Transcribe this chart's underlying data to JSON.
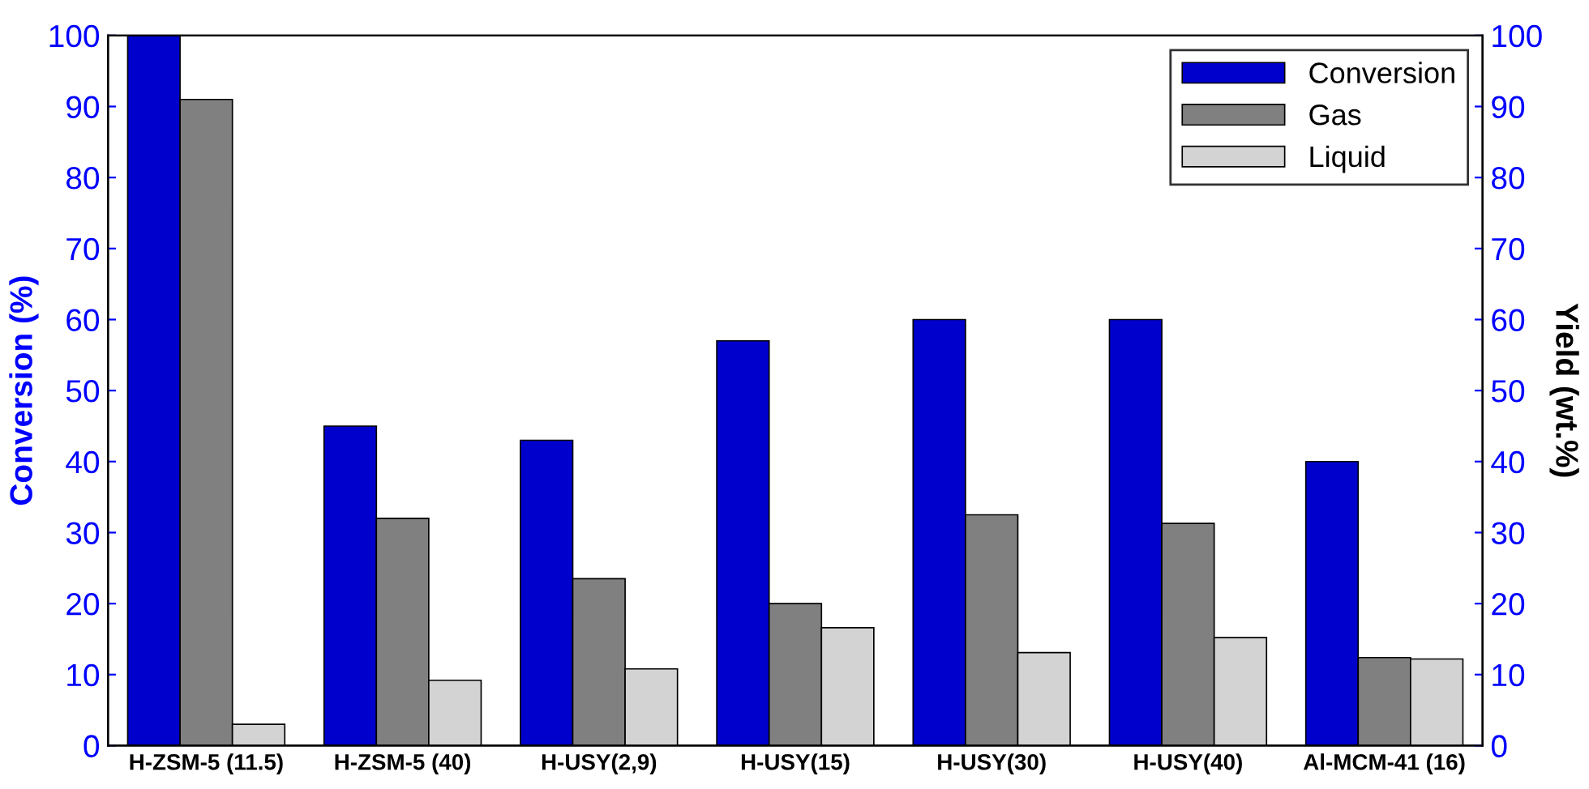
{
  "chart_data": {
    "type": "bar",
    "xlabel": null,
    "ylabel": "Conversion (%)",
    "y2label": "Yield (wt.%)",
    "categories": [
      "H-ZSM-5 (11.5)",
      "H-ZSM-5 (40)",
      "H-USY(2,9)",
      "H-USY(15)",
      "H-USY(30)",
      "H-USY(40)",
      "Al-MCM-41 (16)"
    ],
    "series": [
      {
        "name": "Conversion",
        "color": "#0000cc",
        "values": [
          100,
          45,
          43,
          57,
          60,
          60,
          40
        ]
      },
      {
        "name": "Gas",
        "color": "#808080",
        "axis": "y2",
        "values": [
          91,
          32,
          23.5,
          20,
          32.5,
          31.3,
          12.4
        ]
      },
      {
        "name": "Liquid",
        "color": "#d3d3d3",
        "axis": "y2",
        "values": [
          3,
          9.2,
          10.8,
          16.6,
          13.1,
          15.2,
          12.2
        ]
      }
    ],
    "ylim": [
      0,
      100
    ],
    "yticks": [
      0,
      10,
      20,
      30,
      40,
      50,
      60,
      70,
      80,
      90,
      100
    ],
    "y2lim": [
      0,
      100
    ],
    "y2ticks": [
      0,
      10,
      20,
      30,
      40,
      50,
      60,
      70,
      80,
      90,
      100
    ],
    "legend": "top right",
    "grid": false
  }
}
